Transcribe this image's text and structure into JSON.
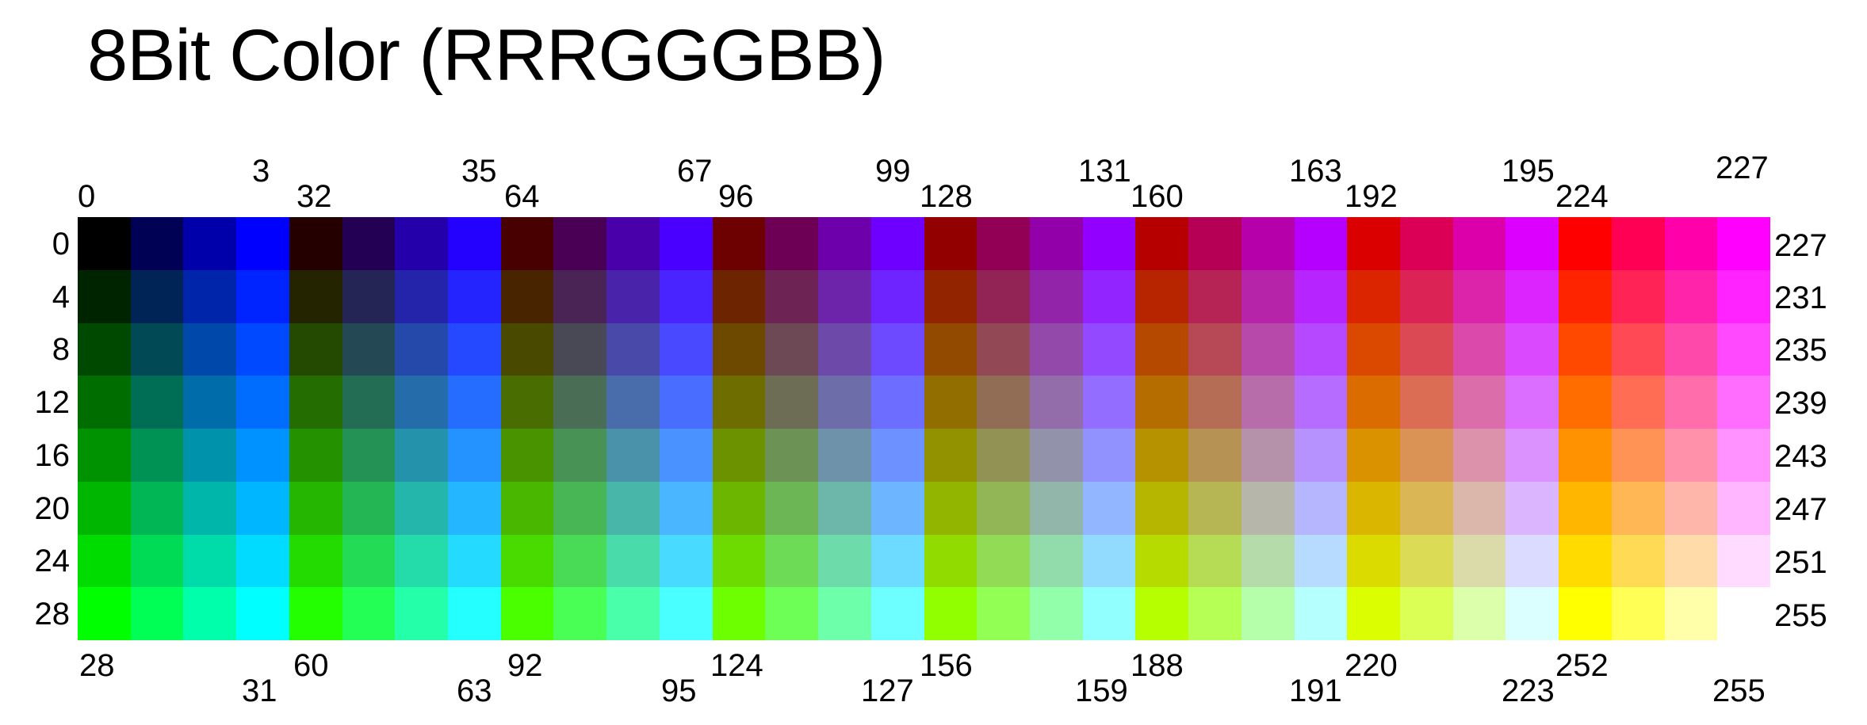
{
  "title": "8Bit Color (RRRGGGBB)",
  "legend": {
    "top": [
      "0",
      "3",
      "32",
      "35",
      "64",
      "67",
      "96",
      "99",
      "128",
      "131",
      "160",
      "163",
      "192",
      "195",
      "224",
      "227"
    ],
    "bottom": [
      "28",
      "31",
      "60",
      "63",
      "92",
      "95",
      "124",
      "127",
      "156",
      "159",
      "188",
      "191",
      "220",
      "223",
      "252",
      "255"
    ],
    "left": [
      "0",
      "4",
      "8",
      "12",
      "16",
      "20",
      "24",
      "28"
    ],
    "right": [
      "227",
      "231",
      "235",
      "239",
      "243",
      "247",
      "251",
      "255"
    ]
  },
  "chart_data": {
    "type": "heatmap",
    "title": "8Bit Color (RRRGGGBB)",
    "rows": 8,
    "columns": 32,
    "bit_layout": "RRRGGGBB",
    "cell_value_rule": "value = 32 * floor(column / 4) + 4 * row + (column % 4)",
    "row_labels_left": [
      0,
      4,
      8,
      12,
      16,
      20,
      24,
      28
    ],
    "row_labels_right": [
      227,
      231,
      235,
      239,
      243,
      247,
      251,
      255
    ],
    "column_labels_top": [
      0,
      3,
      32,
      35,
      64,
      67,
      96,
      99,
      128,
      131,
      160,
      163,
      192,
      195,
      224,
      227
    ],
    "column_labels_bottom": [
      28,
      31,
      60,
      63,
      92,
      95,
      124,
      127,
      156,
      159,
      188,
      191,
      220,
      223,
      252,
      255
    ]
  }
}
